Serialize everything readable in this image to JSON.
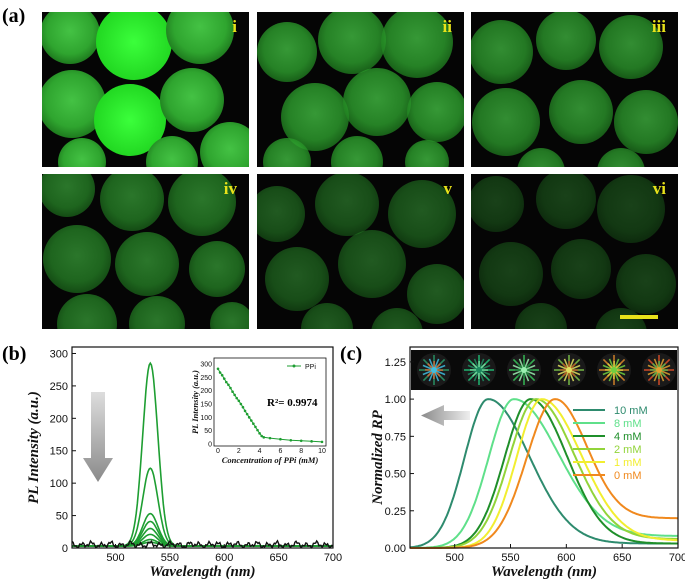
{
  "panel_labels": {
    "a": "(a)",
    "b": "(b)",
    "c": "(c)"
  },
  "micrographs": {
    "labels": [
      "i",
      "ii",
      "iii",
      "iv",
      "v",
      "vi"
    ],
    "brightness": [
      1.0,
      0.78,
      0.72,
      0.6,
      0.45,
      0.32
    ]
  },
  "chart_data": [
    {
      "type": "line",
      "panel": "b",
      "xlabel": "Wavelength (nm)",
      "ylabel": "PL Intensity (a.u.)",
      "xlim": [
        460,
        700
      ],
      "ylim": [
        0,
        310
      ],
      "xticks": [
        500,
        550,
        600,
        650,
        700
      ],
      "yticks": [
        0,
        50,
        100,
        150,
        200,
        250,
        300
      ],
      "peak_center": 532,
      "peak_width": 7,
      "peak_heights": [
        282,
        120,
        50,
        38,
        27,
        18,
        10,
        6
      ],
      "series_colors": [
        "#1e9e32",
        "#1e9e32",
        "#1e9e32",
        "#1e9e32",
        "#1e9e32",
        "#1e9e32",
        "#1e9e32",
        "#1e9e32",
        "#111111"
      ],
      "arrow": "down",
      "inset": {
        "type": "line",
        "xlabel": "Concentration of PPi (mM)",
        "ylabel": "PL Intensity (a.u.)",
        "legend": "PPi",
        "annotation": "R²= 0.9974",
        "xlim": [
          0,
          10
        ],
        "ylim": [
          0,
          300
        ],
        "xticks": [
          0,
          2,
          4,
          6,
          8,
          10
        ],
        "yticks": [
          0,
          50,
          100,
          150,
          200,
          250,
          300
        ],
        "x": [
          0,
          0.2,
          0.4,
          0.6,
          0.8,
          1.0,
          1.2,
          1.4,
          1.6,
          1.8,
          2.0,
          2.2,
          2.4,
          2.6,
          2.8,
          3.0,
          3.2,
          3.4,
          3.6,
          3.8,
          4.0,
          4.2,
          4.4,
          5.0,
          6.0,
          7.0,
          8.0,
          9.0,
          10.0
        ],
        "y": [
          282,
          268,
          258,
          245,
          232,
          222,
          210,
          196,
          184,
          172,
          162,
          150,
          138,
          124,
          112,
          100,
          88,
          76,
          64,
          52,
          40,
          30,
          25,
          22,
          18,
          14,
          12,
          10,
          8
        ]
      }
    },
    {
      "type": "line",
      "panel": "c",
      "xlabel": "Wavelength (nm)",
      "ylabel": "Normalized RP",
      "xlim": [
        460,
        700
      ],
      "ylim": [
        0,
        1.35
      ],
      "xticks": [
        500,
        550,
        600,
        650,
        700
      ],
      "yticks": [
        0,
        0.25,
        0.5,
        0.75,
        1.0,
        1.25
      ],
      "legend_position": "right",
      "arrow": "left",
      "series": [
        {
          "name": "10 mM",
          "color": "#2e8b6e",
          "peak": 530,
          "wl": 30,
          "wr": 52,
          "tail": 0.03
        },
        {
          "name": "8 mM",
          "color": "#5fe08a",
          "peak": 553,
          "wl": 32,
          "wr": 56,
          "tail": 0.08
        },
        {
          "name": "4 mM",
          "color": "#1f8f2a",
          "peak": 568,
          "wl": 33,
          "wr": 46,
          "tail": 0.03
        },
        {
          "name": "2 mM",
          "color": "#92d43a",
          "peak": 573,
          "wl": 34,
          "wr": 48,
          "tail": 0.06
        },
        {
          "name": "1 mM",
          "color": "#f2ee30",
          "peak": 578,
          "wl": 32,
          "wr": 50,
          "tail": 0.05
        },
        {
          "name": "0 mM",
          "color": "#f0891e",
          "peak": 590,
          "wl": 36,
          "wr": 40,
          "tail": 0.2
        }
      ],
      "image_strip_count": 6
    }
  ]
}
